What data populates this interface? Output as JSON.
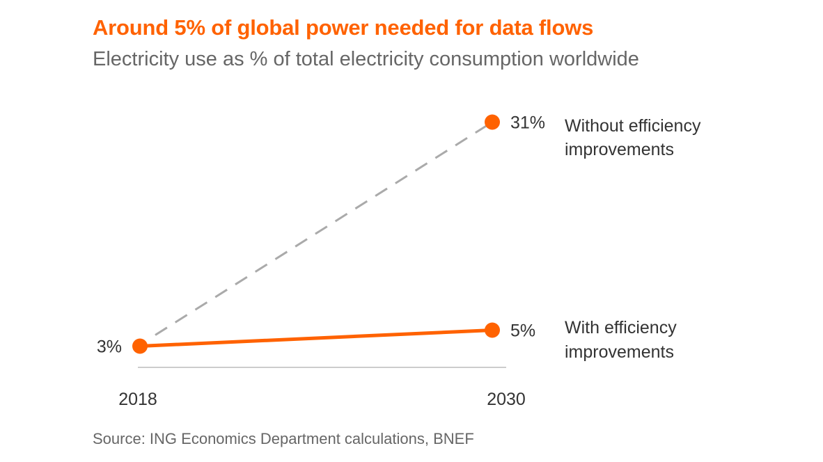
{
  "title": "Around 5% of global power needed for data flows",
  "subtitle": "Electricity use as % of total electricity consumption worldwide",
  "source": "Source: ING Economics Department calculations, BNEF",
  "colors": {
    "accent": "#ff6200",
    "dashed": "#aaaaaa",
    "axis": "#bbbbbb",
    "text": "#333333"
  },
  "chart_data": {
    "type": "line",
    "title": "Around 5% of global power needed for data flows",
    "subtitle": "Electricity use as % of total electricity consumption worldwide",
    "x": [
      "2018",
      "2030"
    ],
    "xlabel": "",
    "ylabel": "",
    "ylim": [
      0,
      31
    ],
    "grid": false,
    "series": [
      {
        "name": "Without efficiency improvements",
        "values": [
          3,
          31
        ],
        "value_labels": [
          "",
          "31%"
        ],
        "style": "dashed",
        "color": "#aaaaaa"
      },
      {
        "name": "With efficiency improvements",
        "values": [
          3,
          5
        ],
        "value_labels": [
          "3%",
          "5%"
        ],
        "style": "solid",
        "color": "#ff6200"
      }
    ],
    "series_label_lines": [
      [
        "Without efficiency",
        "improvements"
      ],
      [
        "With efficiency",
        "improvements"
      ]
    ]
  }
}
